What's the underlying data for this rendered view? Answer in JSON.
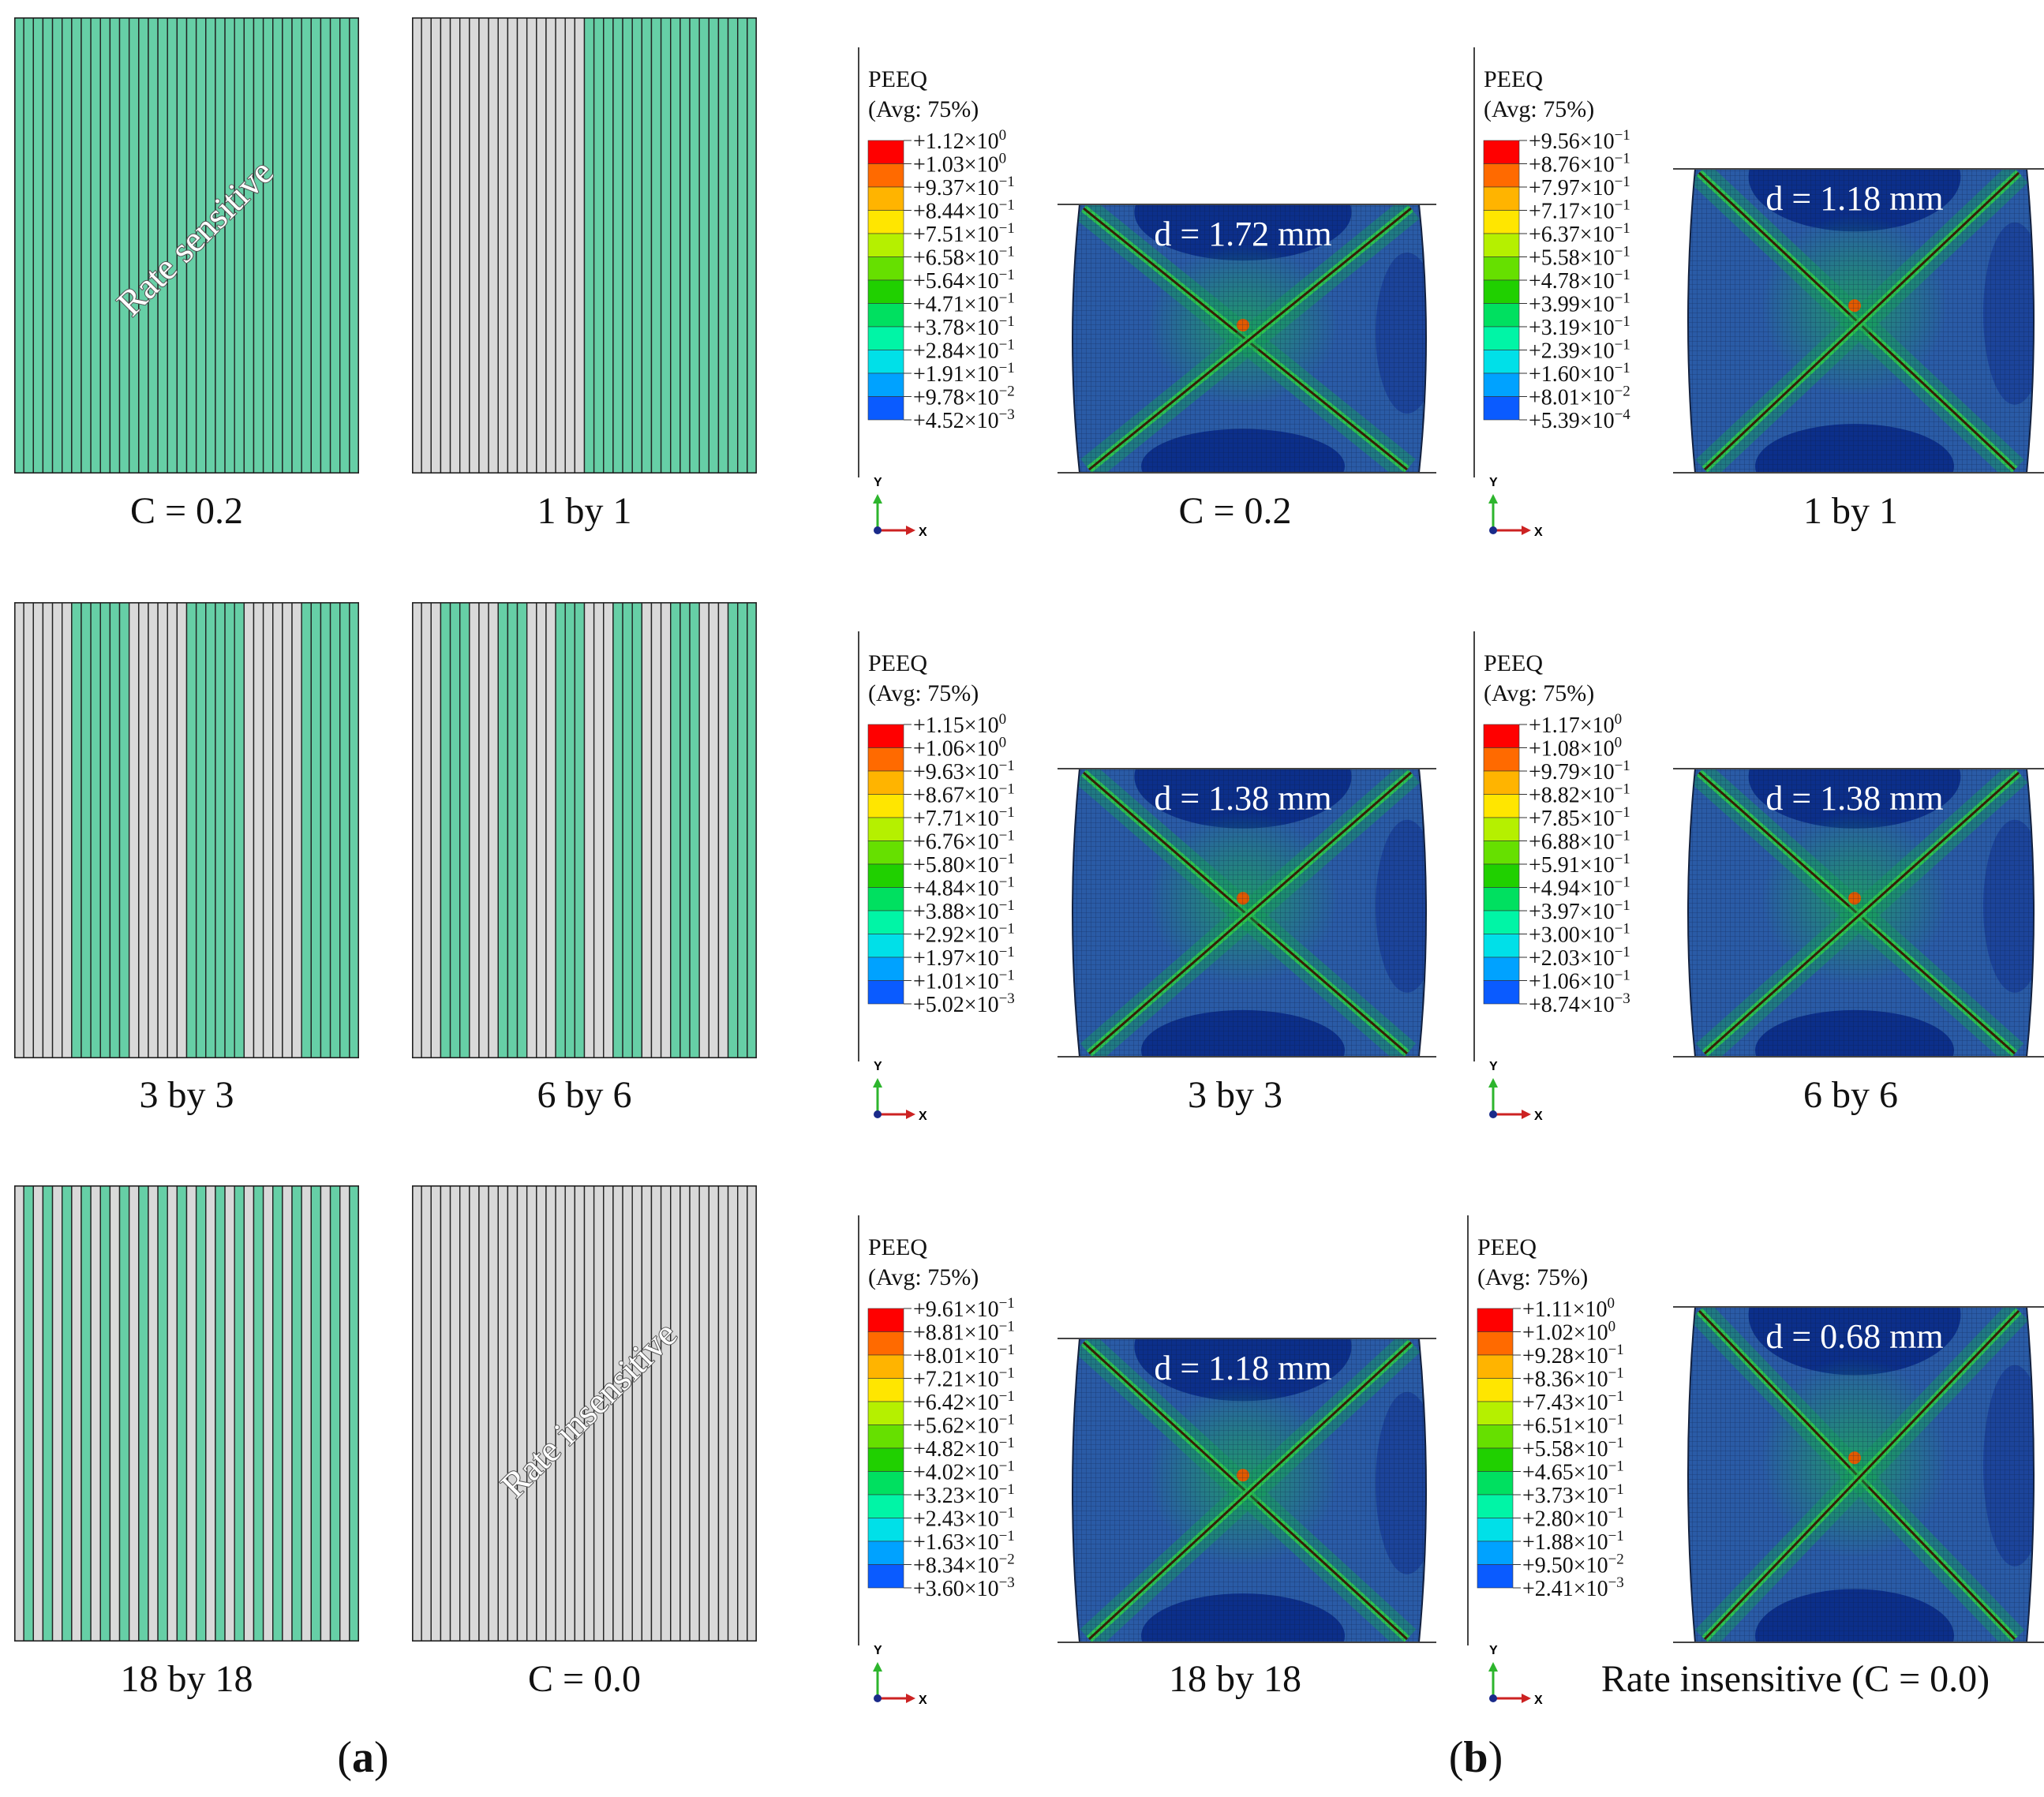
{
  "colors": {
    "sensitive": "#66cfa6",
    "insensitive": "#d9d9d9",
    "stroke": "#222222",
    "overlay_text": "#ffffff",
    "contour": [
      "#0000ff",
      "#0a5bff",
      "#00a2ff",
      "#00e0e8",
      "#00f5a6",
      "#00e060",
      "#20d000",
      "#66e000",
      "#b5f000",
      "#ffe600",
      "#ffb400",
      "#ff6a00",
      "#ff0000"
    ]
  },
  "panel_a": {
    "label_open": "(",
    "label_letter": "a",
    "label_close": ")",
    "patterns": [
      {
        "id": "c02",
        "caption": "C = 0.2",
        "mode": "all"
      },
      {
        "id": "1by1",
        "caption": "1 by 1",
        "mode": "block",
        "block": 18
      },
      {
        "id": "3by3",
        "caption": "3 by 3",
        "mode": "block",
        "block": 6
      },
      {
        "id": "6by6",
        "caption": "6 by 6",
        "mode": "block",
        "block": 3
      },
      {
        "id": "18by18",
        "caption": "18 by 18",
        "mode": "block",
        "block": 1
      },
      {
        "id": "c00",
        "caption": "C = 0.0",
        "mode": "none"
      }
    ],
    "overlay_sensitive": "Rate sensitive",
    "overlay_insensitive": "Rate insensitive"
  },
  "panel_b": {
    "label_open": "(",
    "label_letter": "b",
    "label_close": ")",
    "legend_title": "PEEQ",
    "legend_subtitle": "(Avg: 75%)",
    "axis_y": "Y",
    "axis_x": "X",
    "sims": [
      {
        "id": "c02",
        "caption": "C = 0.2",
        "d_label": "d = 1.72 mm",
        "legend": [
          "+1.12×10",
          "+1.03×10",
          "+9.37×10",
          "+8.44×10",
          "+7.51×10",
          "+6.58×10",
          "+5.64×10",
          "+4.71×10",
          "+3.78×10",
          "+2.84×10",
          "+1.91×10",
          "+9.78×10",
          "+4.52×10"
        ],
        "exp": [
          "0",
          "0",
          "−1",
          "−1",
          "−1",
          "−1",
          "−1",
          "−1",
          "−1",
          "−1",
          "−1",
          "−2",
          "−3"
        ]
      },
      {
        "id": "1by1",
        "caption": "1 by 1",
        "d_label": "d = 1.18 mm",
        "legend": [
          "+9.56×10",
          "+8.76×10",
          "+7.97×10",
          "+7.17×10",
          "+6.37×10",
          "+5.58×10",
          "+4.78×10",
          "+3.99×10",
          "+3.19×10",
          "+2.39×10",
          "+1.60×10",
          "+8.01×10",
          "+5.39×10"
        ],
        "exp": [
          "−1",
          "−1",
          "−1",
          "−1",
          "−1",
          "−1",
          "−1",
          "−1",
          "−1",
          "−1",
          "−1",
          "−2",
          "−4"
        ]
      },
      {
        "id": "3by3",
        "caption": "3 by 3",
        "d_label": "d = 1.38 mm",
        "legend": [
          "+1.15×10",
          "+1.06×10",
          "+9.63×10",
          "+8.67×10",
          "+7.71×10",
          "+6.76×10",
          "+5.80×10",
          "+4.84×10",
          "+3.88×10",
          "+2.92×10",
          "+1.97×10",
          "+1.01×10",
          "+5.02×10"
        ],
        "exp": [
          "0",
          "0",
          "−1",
          "−1",
          "−1",
          "−1",
          "−1",
          "−1",
          "−1",
          "−1",
          "−1",
          "−1",
          "−3"
        ]
      },
      {
        "id": "6by6",
        "caption": "6 by 6",
        "d_label": "d = 1.38 mm",
        "legend": [
          "+1.17×10",
          "+1.08×10",
          "+9.79×10",
          "+8.82×10",
          "+7.85×10",
          "+6.88×10",
          "+5.91×10",
          "+4.94×10",
          "+3.97×10",
          "+3.00×10",
          "+2.03×10",
          "+1.06×10",
          "+8.74×10"
        ],
        "exp": [
          "0",
          "0",
          "−1",
          "−1",
          "−1",
          "−1",
          "−1",
          "−1",
          "−1",
          "−1",
          "−1",
          "−1",
          "−3"
        ]
      },
      {
        "id": "18by18",
        "caption": "18 by 18",
        "d_label": "d = 1.18 mm",
        "legend": [
          "+9.61×10",
          "+8.81×10",
          "+8.01×10",
          "+7.21×10",
          "+6.42×10",
          "+5.62×10",
          "+4.82×10",
          "+4.02×10",
          "+3.23×10",
          "+2.43×10",
          "+1.63×10",
          "+8.34×10",
          "+3.60×10"
        ],
        "exp": [
          "−1",
          "−1",
          "−1",
          "−1",
          "−1",
          "−1",
          "−1",
          "−1",
          "−1",
          "−1",
          "−1",
          "−2",
          "−3"
        ]
      },
      {
        "id": "c00",
        "caption": "Rate insensitive (C = 0.0)",
        "d_label": "d = 0.68 mm",
        "legend": [
          "+1.11×10",
          "+1.02×10",
          "+9.28×10",
          "+8.36×10",
          "+7.43×10",
          "+6.51×10",
          "+5.58×10",
          "+4.65×10",
          "+3.73×10",
          "+2.80×10",
          "+1.88×10",
          "+9.50×10",
          "+2.41×10"
        ],
        "exp": [
          "0",
          "0",
          "−1",
          "−1",
          "−1",
          "−1",
          "−1",
          "−1",
          "−1",
          "−1",
          "−1",
          "−2",
          "−3"
        ]
      }
    ]
  }
}
